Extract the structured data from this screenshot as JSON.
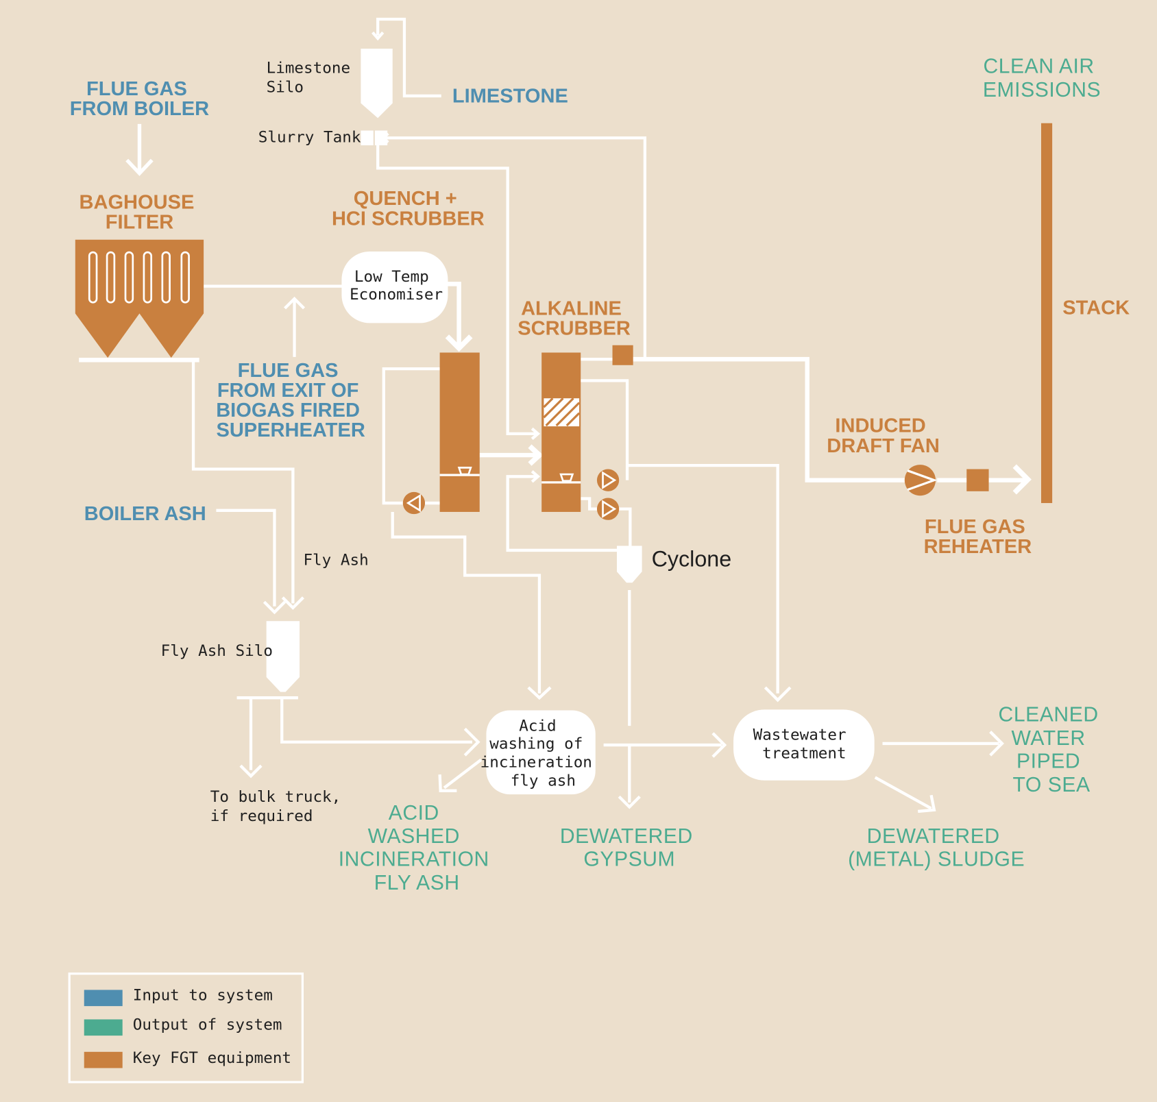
{
  "inputs": {
    "flue_gas_boiler": [
      "FLUE GAS",
      "FROM BOILER"
    ],
    "limestone": "LIMESTONE",
    "flue_gas_superheater": [
      "FLUE GAS",
      "FROM EXIT OF",
      "BIOGAS FIRED",
      "SUPERHEATER"
    ],
    "boiler_ash": "BOILER ASH"
  },
  "outputs": {
    "clean_air": [
      "CLEAN AIR",
      "EMISSIONS"
    ],
    "cleaned_water": [
      "CLEANED",
      "WATER",
      "PIPED",
      "TO SEA"
    ],
    "acid_washed_ash": [
      "ACID",
      "WASHED",
      "INCINERATION",
      "FLY ASH"
    ],
    "dewatered_gypsum": [
      "DEWATERED",
      "GYPSUM"
    ],
    "dewatered_sludge": [
      "DEWATERED",
      "(METAL) SLUDGE"
    ]
  },
  "equipment": {
    "baghouse": [
      "BAGHOUSE",
      "FILTER"
    ],
    "quench": [
      "QUENCH +",
      "HCI SCRUBBER"
    ],
    "alkaline": [
      "ALKALINE",
      "SCRUBBER"
    ],
    "induced_fan": [
      "INDUCED",
      "DRAFT FAN"
    ],
    "reheater": [
      "FLUE GAS",
      "REHEATER"
    ],
    "stack": "STACK"
  },
  "components": {
    "limestone_silo": [
      "Limestone",
      "Silo"
    ],
    "slurry_tank": "Slurry Tank",
    "economiser": [
      "Low Temp",
      "Economiser"
    ],
    "fly_ash": "Fly Ash",
    "fly_ash_silo": "Fly Ash Silo",
    "bulk_truck": [
      "To bulk truck,",
      "if required"
    ],
    "cyclone": "Cyclone",
    "acid_washing": [
      "Acid",
      "washing of",
      "incineration",
      "fly ash"
    ],
    "wastewater": [
      "Wastewater",
      "treatment"
    ]
  },
  "legend": {
    "items": [
      {
        "label": "Input to system",
        "color": "#4f8eb0"
      },
      {
        "label": "Output of system",
        "color": "#4cab90"
      },
      {
        "label": "Key FGT equipment",
        "color": "#c9803f"
      }
    ]
  },
  "colors": {
    "background": "#ecdfcc",
    "input": "#4f8eb0",
    "output": "#4cab90",
    "equipment": "#c9803f",
    "pipe": "#ffffff"
  }
}
